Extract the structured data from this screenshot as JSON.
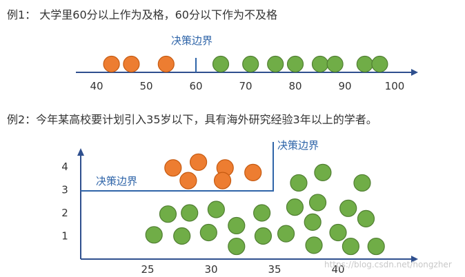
{
  "example1": {
    "text": "例1： 大学里60分以上作为及格，60分以下作为不及格",
    "boundary_label": "决策边界",
    "boundary_value": 60,
    "ticks": [
      "40",
      "50",
      "60",
      "70",
      "80",
      "90",
      "100"
    ],
    "tick_values": [
      40,
      50,
      60,
      70,
      80,
      90,
      100
    ],
    "fail_scores": [
      43,
      47,
      54
    ],
    "pass_scores": [
      65,
      71,
      76,
      80,
      85,
      88,
      94,
      97
    ]
  },
  "example2": {
    "text": "例2：今年某高校要计划引入35岁以下，具有海外研究经验3年以上的学者。",
    "boundary_label_left": "决策边界",
    "boundary_label_top": "决策边界",
    "boundary_age": 35,
    "boundary_years": 3,
    "x_ticks": [
      "25",
      "30",
      "35",
      "40"
    ],
    "x_tick_values": [
      25,
      30,
      35,
      40
    ],
    "y_ticks": [
      "1",
      "2",
      "3",
      "4"
    ],
    "y_tick_values": [
      1,
      2,
      3,
      4
    ],
    "selected": [
      {
        "age": 27.0,
        "years": 3.95
      },
      {
        "age": 29.0,
        "years": 4.2
      },
      {
        "age": 31.1,
        "years": 3.95
      },
      {
        "age": 33.3,
        "years": 3.75
      },
      {
        "age": 28.2,
        "years": 3.4
      },
      {
        "age": 30.9,
        "years": 3.4
      }
    ],
    "rejected": [
      {
        "age": 25.5,
        "years": 1.05
      },
      {
        "age": 27.7,
        "years": 1.0
      },
      {
        "age": 29.8,
        "years": 1.15
      },
      {
        "age": 32.0,
        "years": 0.55
      },
      {
        "age": 34.1,
        "years": 1.0
      },
      {
        "age": 35.9,
        "years": 1.1
      },
      {
        "age": 38.1,
        "years": 0.6
      },
      {
        "age": 40.0,
        "years": 1.15
      },
      {
        "age": 41.0,
        "years": 0.55
      },
      {
        "age": 43.0,
        "years": 0.55
      },
      {
        "age": 26.6,
        "years": 1.95
      },
      {
        "age": 28.3,
        "years": 2.0
      },
      {
        "age": 30.4,
        "years": 2.15
      },
      {
        "age": 32.0,
        "years": 1.45
      },
      {
        "age": 34.0,
        "years": 2.0
      },
      {
        "age": 36.6,
        "years": 2.25
      },
      {
        "age": 38.0,
        "years": 1.6
      },
      {
        "age": 38.4,
        "years": 2.45
      },
      {
        "age": 40.8,
        "years": 2.2
      },
      {
        "age": 42.2,
        "years": 1.75
      },
      {
        "age": 36.9,
        "years": 3.3
      },
      {
        "age": 38.8,
        "years": 3.75
      },
      {
        "age": 41.9,
        "years": 3.3
      }
    ],
    "watermark": "https://blog.csdn.net/hongzher"
  },
  "colors": {
    "axis": "#2e4f8e",
    "boundary": "#2e64a8",
    "orange_fill": "#ed7d31",
    "orange_stroke": "#c55a11",
    "green_fill": "#70ad47",
    "green_stroke": "#507e32"
  }
}
